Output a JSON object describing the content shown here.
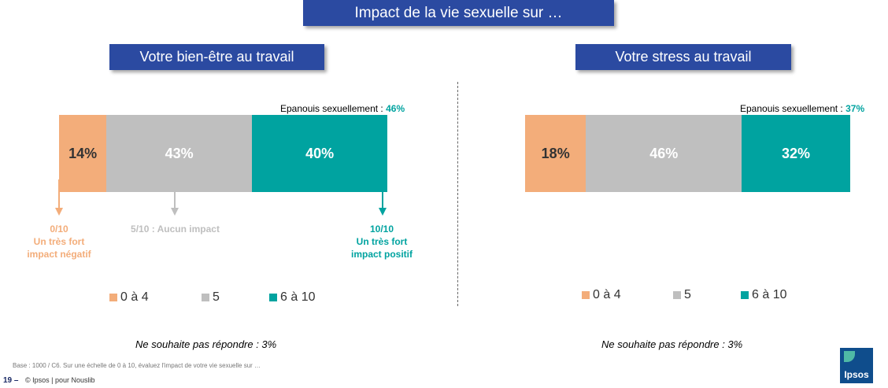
{
  "header": {
    "title": "Impact de la vie sexuelle sur …"
  },
  "colors": {
    "negative": "#f3ad7a",
    "neutral": "#bfbfbf",
    "positive": "#00a3a0",
    "header_bg": "#2b4aa1"
  },
  "chart_data": [
    {
      "type": "bar",
      "orientation": "horizontal-stacked-100",
      "title": "Votre bien-être au travail",
      "annotation_label": "Epanouis sexuellement :",
      "annotation_value": "46%",
      "series": [
        {
          "name": "0 à 4",
          "value": 14,
          "label": "14%"
        },
        {
          "name": "5",
          "value": 43,
          "label": "43%"
        },
        {
          "name": "6 à 10",
          "value": 40,
          "label": "40%"
        }
      ],
      "note": "Ne souhaite pas répondre : 3%"
    },
    {
      "type": "bar",
      "orientation": "horizontal-stacked-100",
      "title": "Votre stress au travail",
      "annotation_label": "Epanouis sexuellement :",
      "annotation_value": "37%",
      "series": [
        {
          "name": "0 à 4",
          "value": 18,
          "label": "18%"
        },
        {
          "name": "5",
          "value": 46,
          "label": "46%"
        },
        {
          "name": "6 à 10",
          "value": 32,
          "label": "32%"
        }
      ],
      "note": "Ne souhaite pas répondre : 3%"
    }
  ],
  "scale_labels": {
    "low_title": "0/10",
    "low_text_1": "Un très fort",
    "low_text_2": "impact négatif",
    "mid": "5/10 : Aucun impact",
    "high_title": "10/10",
    "high_text_1": "Un très fort",
    "high_text_2": "impact positif"
  },
  "legend": [
    "0 à 4",
    "5",
    "6 à 10"
  ],
  "footer": {
    "base": "Base : 1000 / C6. Sur une échelle de 0 à 10, évaluez l'impact de votre vie sexuelle sur …",
    "page": "19 –",
    "copyright": "© Ipsos | pour Nouslib"
  },
  "logo": {
    "text": "Ipsos"
  }
}
